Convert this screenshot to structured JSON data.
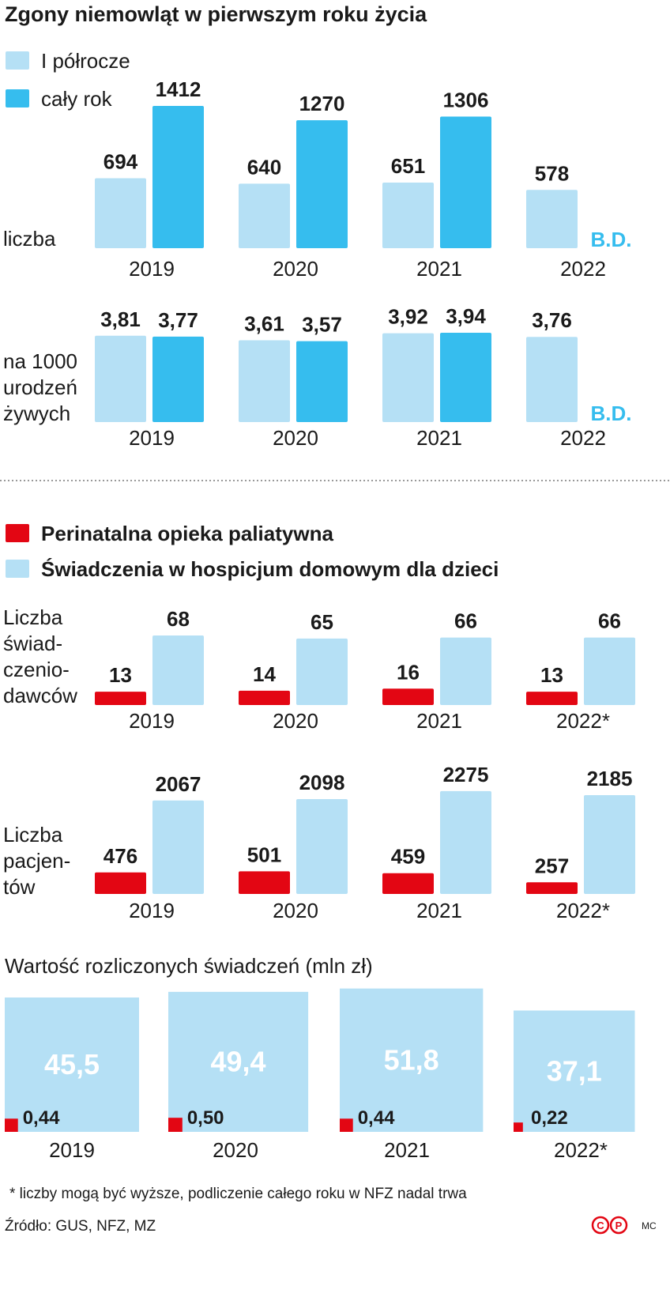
{
  "chart_data": [
    {
      "type": "bar",
      "title": "Zgony niemowląt w pierwszym roku życia",
      "y_label": [
        "liczba"
      ],
      "categories": [
        "2019",
        "2020",
        "2021",
        "2022"
      ],
      "ylim": [
        0,
        1600
      ],
      "series": [
        {
          "name": "I półrocze",
          "color": "#b5e0f5",
          "values": [
            694,
            640,
            651,
            578
          ]
        },
        {
          "name": "cały rok",
          "color": "#36bdee",
          "values": [
            1412,
            1270,
            1306,
            null
          ],
          "value_labels": [
            "1412",
            "1270",
            "1306",
            "B.D."
          ]
        }
      ]
    },
    {
      "type": "bar",
      "y_label": [
        "na 1000",
        "urodzeń",
        "żywych"
      ],
      "categories": [
        "2019",
        "2020",
        "2021",
        "2022"
      ],
      "ylim": [
        0,
        4.5
      ],
      "series": [
        {
          "color": "#b5e0f5",
          "values": [
            3.81,
            3.61,
            3.92,
            3.76
          ],
          "value_labels": [
            "3,81",
            "3,61",
            "3,92",
            "3,76"
          ]
        },
        {
          "color": "#36bdee",
          "values": [
            3.77,
            3.57,
            3.94,
            null
          ],
          "value_labels": [
            "3,77",
            "3,57",
            "3,94",
            "B.D."
          ]
        }
      ]
    },
    {
      "type": "bar",
      "y_label": [
        "Liczba",
        "świad-",
        "czenio-",
        "dawców"
      ],
      "categories": [
        "2019",
        "2020",
        "2021",
        "2022*"
      ],
      "ylim": [
        0,
        80
      ],
      "series": [
        {
          "name": "Perinatalna opieka paliatywna",
          "color": "#e30613",
          "values": [
            13,
            14,
            16,
            13
          ]
        },
        {
          "name": "Świadczenia w hospicjum domowym dla dzieci",
          "color": "#b5e0f5",
          "values": [
            68,
            65,
            66,
            66
          ]
        }
      ]
    },
    {
      "type": "bar",
      "y_label": [
        "Liczba",
        "pacjen-",
        "tów"
      ],
      "categories": [
        "2019",
        "2020",
        "2021",
        "2022*"
      ],
      "ylim": [
        0,
        2500
      ],
      "series": [
        {
          "color": "#e30613",
          "values": [
            476,
            501,
            459,
            257
          ]
        },
        {
          "color": "#b5e0f5",
          "values": [
            2067,
            2098,
            2275,
            2185
          ]
        }
      ]
    },
    {
      "type": "square",
      "title": "Wartość rozliczonych świadczeń (mln zł)",
      "categories": [
        "2019",
        "2020",
        "2021",
        "2022*"
      ],
      "series": [
        {
          "color": "#b5e0f5",
          "values": [
            45.5,
            49.4,
            51.8,
            37.1
          ],
          "value_labels": [
            "45,5",
            "49,4",
            "51,8",
            "37,1"
          ]
        },
        {
          "color": "#e30613",
          "values": [
            0.44,
            0.5,
            0.44,
            0.22
          ],
          "value_labels": [
            "0,44",
            "0,50",
            "0,44",
            "0,22"
          ]
        }
      ]
    }
  ],
  "footnote": "* liczby mogą być wyższe, podliczenie całego roku w NFZ nadal trwa",
  "source": "Źródło: GUS, NFZ, MZ",
  "logo": [
    "C",
    "P"
  ],
  "author": "MC"
}
